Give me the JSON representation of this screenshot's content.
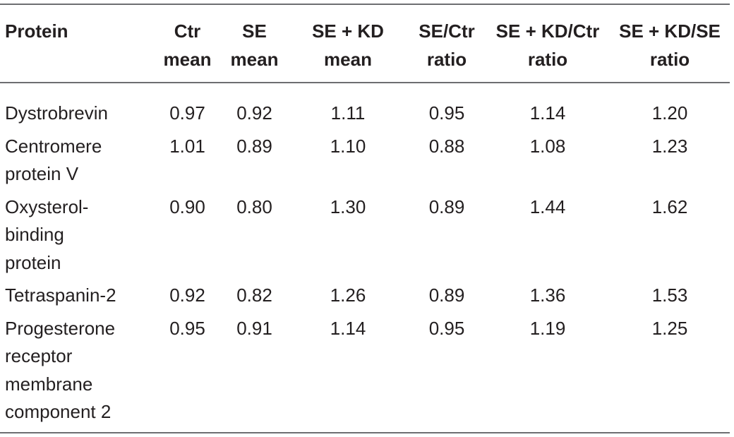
{
  "table": {
    "headers": [
      "Protein",
      "Ctr mean",
      "SE mean",
      "SE + KD mean",
      "SE/Ctr ratio",
      "SE + KD/Ctr ratio",
      "SE + KD/SE ratio"
    ],
    "rows": [
      [
        "Dystrobrevin",
        "0.97",
        "0.92",
        "1.11",
        "0.95",
        "1.14",
        "1.20"
      ],
      [
        "Centromere protein V",
        "1.01",
        "0.89",
        "1.10",
        "0.88",
        "1.08",
        "1.23"
      ],
      [
        "Oxysterol-binding protein",
        "0.90",
        "0.80",
        "1.30",
        "0.89",
        "1.44",
        "1.62"
      ],
      [
        "Tetraspanin-2",
        "0.92",
        "0.82",
        "1.26",
        "0.89",
        "1.36",
        "1.53"
      ],
      [
        "Progesterone receptor membrane component 2",
        "0.95",
        "0.91",
        "1.14",
        "0.95",
        "1.19",
        "1.25"
      ]
    ]
  }
}
